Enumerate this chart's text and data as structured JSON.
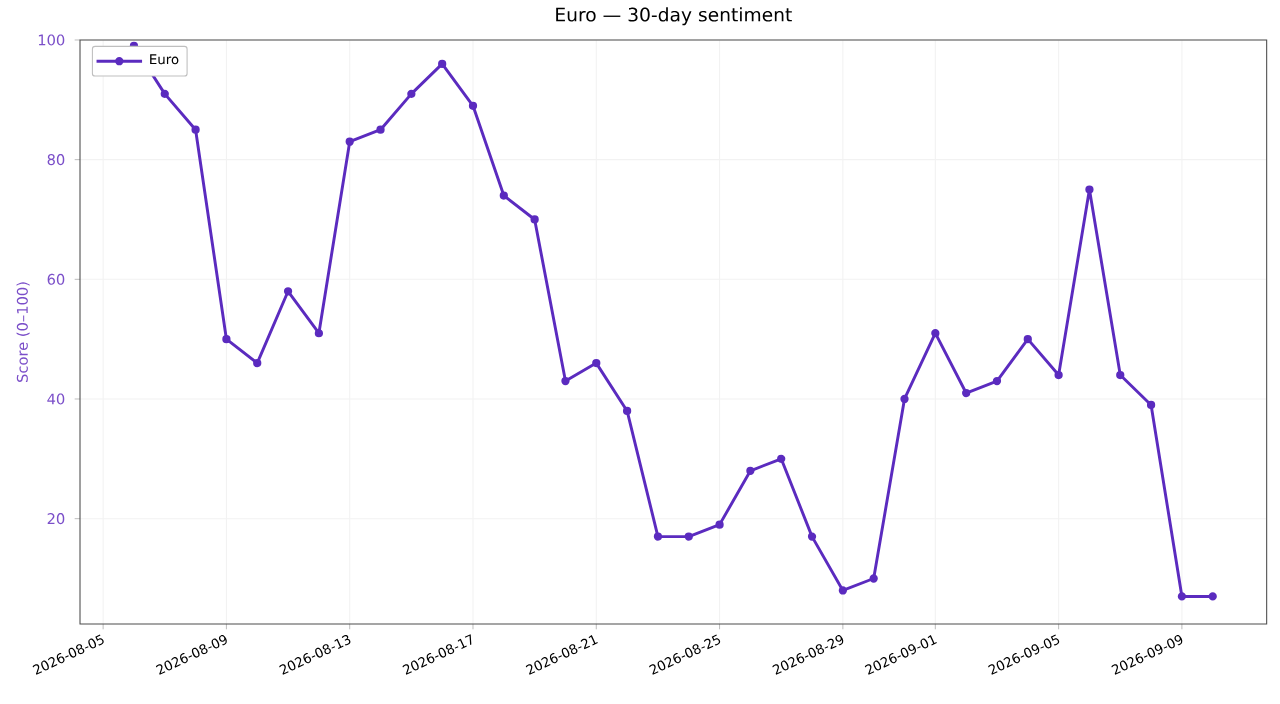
{
  "chart_data": {
    "type": "line",
    "title": "Euro — 30-day sentiment",
    "ylabel": "Score (0–100)",
    "x": [
      "2026-08-06",
      "2026-08-07",
      "2026-08-08",
      "2026-08-09",
      "2026-08-10",
      "2026-08-11",
      "2026-08-12",
      "2026-08-13",
      "2026-08-14",
      "2026-08-15",
      "2026-08-16",
      "2026-08-17",
      "2026-08-18",
      "2026-08-19",
      "2026-08-20",
      "2026-08-21",
      "2026-08-22",
      "2026-08-23",
      "2026-08-24",
      "2026-08-25",
      "2026-08-26",
      "2026-08-27",
      "2026-08-28",
      "2026-08-29",
      "2026-08-30",
      "2026-08-31",
      "2026-09-01",
      "2026-09-02",
      "2026-09-03",
      "2026-09-04",
      "2026-09-05",
      "2026-09-06",
      "2026-09-07",
      "2026-09-08",
      "2026-09-09",
      "2026-09-10"
    ],
    "series": [
      {
        "name": "Euro",
        "color": "#5b2bbf",
        "values": [
          99,
          91,
          85,
          50,
          46,
          58,
          51,
          83,
          85,
          91,
          96,
          89,
          74,
          70,
          43,
          46,
          38,
          17,
          17,
          19,
          28,
          30,
          17,
          8,
          10,
          40,
          51,
          41,
          43,
          50,
          44,
          75,
          44,
          39,
          7,
          7
        ]
      }
    ],
    "xlim": [
      "2026-08-04T06:00",
      "2026-09-11T18:00"
    ],
    "xticks": [
      "2026-08-05",
      "2026-08-09",
      "2026-08-13",
      "2026-08-17",
      "2026-08-21",
      "2026-08-25",
      "2026-08-29",
      "2026-09-01",
      "2026-09-05",
      "2026-09-09"
    ],
    "ylim": [
      2.4,
      100
    ],
    "yticks": [
      20,
      40,
      60,
      80,
      100
    ],
    "grid": true,
    "legend": "top left",
    "marker": "circle",
    "line_style": "solid"
  }
}
